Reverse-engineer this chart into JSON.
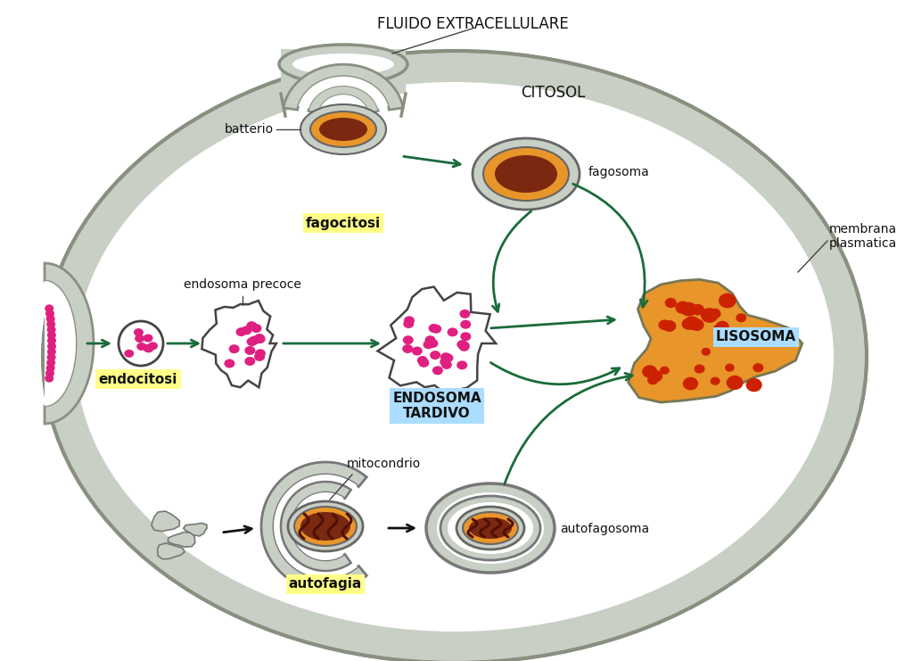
{
  "bg_color": "#ffffff",
  "cell_color": "#c8cfc4",
  "cell_edge": "#8a9080",
  "bacterium_outer": "#c8cfc4",
  "bacterium_mid": "#e8952a",
  "bacterium_inner": "#7a2810",
  "lysosome_fill": "#e8952a",
  "lysosome_spot": "#cc2200",
  "mito_outer": "#c8cfc4",
  "mito_mid": "#e8952a",
  "mito_inner": "#7a2810",
  "arrow_green": "#1a6b3a",
  "arrow_black": "#111111",
  "yellow_bg": "#ffff88",
  "blue_bg": "#aaddff",
  "pink": "#e02080",
  "endosome_edge": "#444444",
  "title_fluido": "FLUIDO EXTRACELLULARE",
  "title_citosol": "CITOSOL",
  "lbl_batterio": "batterio",
  "lbl_fagosoma": "fagosoma",
  "lbl_fagocitosi": "fagocitosi",
  "lbl_endocitosi": "endocitosi",
  "lbl_endosoma_precoce": "endosoma precoce",
  "lbl_endosoma_tardivo": "ENDOSOMA\nTARDIVO",
  "lbl_lisosoma": "LISOSOMA",
  "lbl_membrana": "membrana\nplasmatica",
  "lbl_mitocondrio": "mitocondrio",
  "lbl_autofagia": "autofagia",
  "lbl_autofagosoma": "autofagosoma"
}
